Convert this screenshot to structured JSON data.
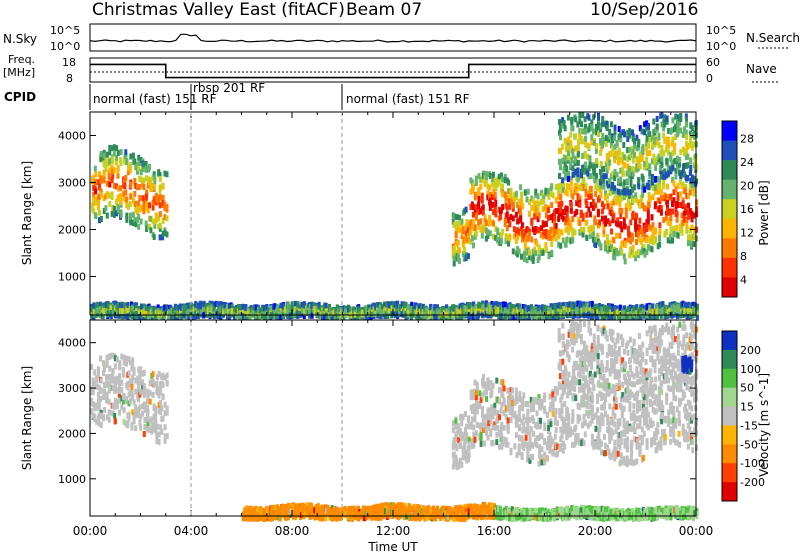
{
  "header": {
    "station": "Christmas Valley East (fitACF)",
    "beam": "Beam 07",
    "date": "10/Sep/2016"
  },
  "top_panels": {
    "nsky_label": "N.Sky",
    "nsearch_label": "N.Search",
    "nsky_ticks": [
      "10^5",
      "10^0"
    ],
    "nsearch_ticks": [
      "10^5",
      "10^0"
    ],
    "freq_label_line1": "Freq.",
    "freq_label_line2": "[MHz]",
    "freq_ticks": [
      "18",
      "8"
    ],
    "nave_label": "Nave",
    "nave_ticks": [
      "60",
      "0"
    ],
    "cpid_label": "CPID",
    "cpid_segments": [
      {
        "label": "normal (fast) 151 RF",
        "start_hour": 0,
        "end_hour": 4
      },
      {
        "label": "rbsp 201 RF",
        "start_hour": 4,
        "end_hour": 10
      },
      {
        "label": "normal (fast) 151 RF",
        "start_hour": 10,
        "end_hour": 24
      }
    ],
    "freq_step": [
      {
        "from_hour": 0,
        "to_hour": 3.0,
        "value": 16
      },
      {
        "from_hour": 3.0,
        "to_hour": 15.0,
        "value": 10
      },
      {
        "from_hour": 15.0,
        "to_hour": 24,
        "value": 16
      }
    ]
  },
  "chart_data": [
    {
      "type": "heatmap",
      "title": "",
      "xlabel": "Time UT",
      "ylabel": "Slant Range [km]",
      "x_ticks": [
        "00:00",
        "04:00",
        "08:00",
        "12:00",
        "16:00",
        "20:00",
        "00:00"
      ],
      "y_ticks": [
        "1000",
        "2000",
        "3000",
        "4000"
      ],
      "xlim_hours": [
        0,
        24
      ],
      "ylim_km": [
        180,
        4500
      ],
      "colorbar_label": "Power [dB]",
      "colorbar_ticks": [
        "4",
        "8",
        "12",
        "16",
        "20",
        "24",
        "28"
      ],
      "colorbar_range": [
        0,
        30
      ],
      "colors": [
        "#0000ff",
        "#1f4fb8",
        "#2e8b57",
        "#64b46e",
        "#c8d020",
        "#ffb400",
        "#ff7800",
        "#ff3000",
        "#e00000"
      ],
      "features": [
        {
          "t0": 0.0,
          "t1": 3.0,
          "r0": 2100,
          "r1": 3600,
          "level": 0.6
        },
        {
          "t0": 14.3,
          "t1": 15.0,
          "r0": 1400,
          "r1": 2500,
          "level": 0.55
        },
        {
          "t0": 15.0,
          "t1": 24.0,
          "r0": 1600,
          "r1": 3100,
          "level": 0.7
        },
        {
          "t0": 18.5,
          "t1": 24.0,
          "r0": 3000,
          "r1": 4400,
          "level": 0.4
        },
        {
          "t0": 0.0,
          "t1": 24.0,
          "r0": 180,
          "r1": 450,
          "level": 0.35
        }
      ]
    },
    {
      "type": "heatmap",
      "title": "",
      "xlabel": "Time UT",
      "ylabel": "Slant Range [km]",
      "x_ticks": [
        "00:00",
        "04:00",
        "08:00",
        "12:00",
        "16:00",
        "20:00",
        "00:00"
      ],
      "y_ticks": [
        "1000",
        "2000",
        "3000",
        "4000"
      ],
      "xlim_hours": [
        0,
        24
      ],
      "ylim_km": [
        180,
        4500
      ],
      "colorbar_label": "Velocity [m s^-1]",
      "colorbar_ticks": [
        "200",
        "100",
        "50",
        "15",
        "-15",
        "-50",
        "-100",
        "-200"
      ],
      "colorbar_range": [
        -250,
        250
      ],
      "colors": [
        "#1030c0",
        "#2e8b57",
        "#50c040",
        "#a0d890",
        "#c0c0c0",
        "#ffb400",
        "#ff8c00",
        "#ff4000",
        "#e00000"
      ],
      "features": [
        {
          "t0": 0.0,
          "t1": 3.0,
          "r0": 2100,
          "r1": 3600,
          "velocity": 0
        },
        {
          "t0": 14.3,
          "t1": 15.0,
          "r0": 1400,
          "r1": 2500,
          "velocity": 0
        },
        {
          "t0": 15.0,
          "t1": 24.0,
          "r0": 1600,
          "r1": 3100,
          "velocity": 0
        },
        {
          "t0": 18.5,
          "t1": 24.0,
          "r0": 3000,
          "r1": 4400,
          "velocity": 0
        },
        {
          "t0": 6.0,
          "t1": 16.0,
          "r0": 180,
          "r1": 450,
          "velocity": -40
        },
        {
          "t0": 16.0,
          "t1": 24.0,
          "r0": 180,
          "r1": 400,
          "velocity": 30
        },
        {
          "t0": 23.4,
          "t1": 23.8,
          "r0": 3400,
          "r1": 3700,
          "velocity": 220
        }
      ]
    }
  ]
}
